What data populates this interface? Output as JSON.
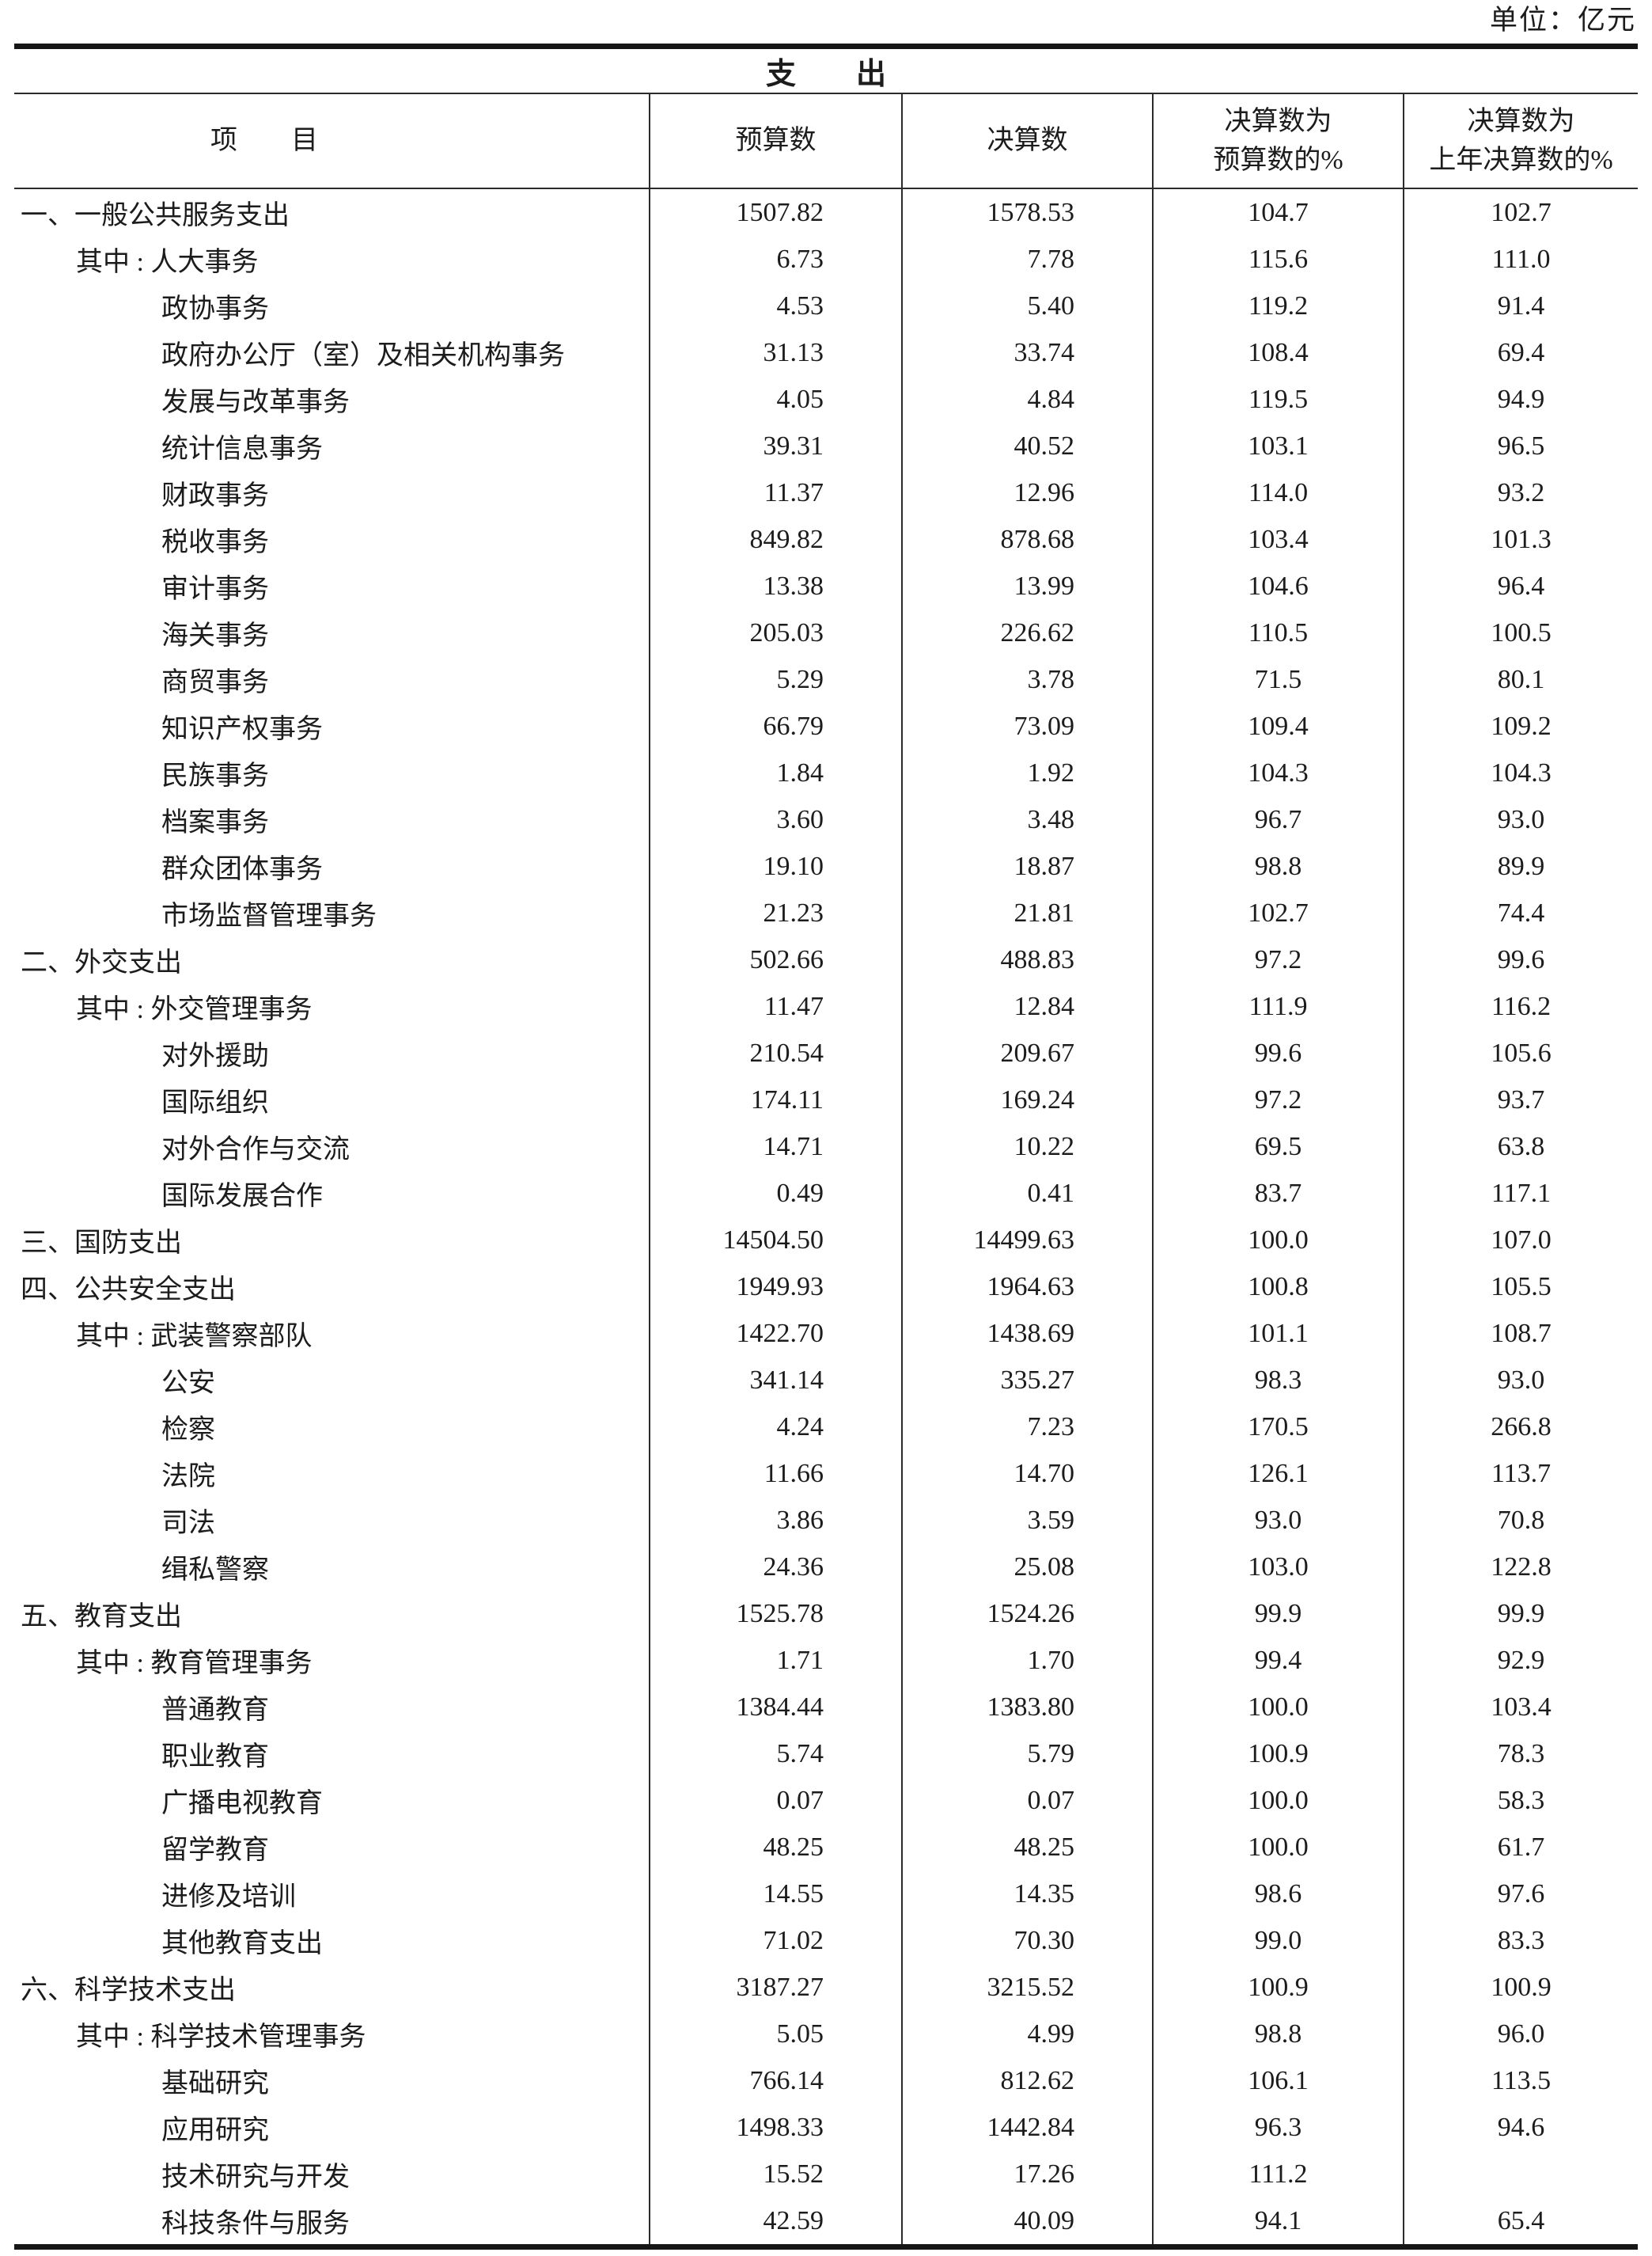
{
  "page": {
    "unit_label": "单位：亿元"
  },
  "table": {
    "title": "支　　出",
    "headers": {
      "item": "项　　目",
      "budget": "预算数",
      "final": "决算数",
      "pct_of_budget": "决算数为\n预算数的%",
      "pct_of_prev": "决算数为\n上年决算数的%"
    },
    "rows": [
      {
        "label": "一、一般公共服务支出",
        "indent": 0,
        "values": [
          "1507.82",
          "1578.53",
          "104.7",
          "102.7"
        ]
      },
      {
        "label": "其中 : 人大事务",
        "indent": 1,
        "values": [
          "6.73",
          "7.78",
          "115.6",
          "111.0"
        ]
      },
      {
        "label": "政协事务",
        "indent": 2,
        "values": [
          "4.53",
          "5.40",
          "119.2",
          "91.4"
        ]
      },
      {
        "label": "政府办公厅（室）及相关机构事务",
        "indent": 2,
        "values": [
          "31.13",
          "33.74",
          "108.4",
          "69.4"
        ]
      },
      {
        "label": "发展与改革事务",
        "indent": 2,
        "values": [
          "4.05",
          "4.84",
          "119.5",
          "94.9"
        ]
      },
      {
        "label": "统计信息事务",
        "indent": 2,
        "values": [
          "39.31",
          "40.52",
          "103.1",
          "96.5"
        ]
      },
      {
        "label": "财政事务",
        "indent": 2,
        "values": [
          "11.37",
          "12.96",
          "114.0",
          "93.2"
        ]
      },
      {
        "label": "税收事务",
        "indent": 2,
        "values": [
          "849.82",
          "878.68",
          "103.4",
          "101.3"
        ]
      },
      {
        "label": "审计事务",
        "indent": 2,
        "values": [
          "13.38",
          "13.99",
          "104.6",
          "96.4"
        ]
      },
      {
        "label": "海关事务",
        "indent": 2,
        "values": [
          "205.03",
          "226.62",
          "110.5",
          "100.5"
        ]
      },
      {
        "label": "商贸事务",
        "indent": 2,
        "values": [
          "5.29",
          "3.78",
          "71.5",
          "80.1"
        ]
      },
      {
        "label": "知识产权事务",
        "indent": 2,
        "values": [
          "66.79",
          "73.09",
          "109.4",
          "109.2"
        ]
      },
      {
        "label": "民族事务",
        "indent": 2,
        "values": [
          "1.84",
          "1.92",
          "104.3",
          "104.3"
        ]
      },
      {
        "label": "档案事务",
        "indent": 2,
        "values": [
          "3.60",
          "3.48",
          "96.7",
          "93.0"
        ]
      },
      {
        "label": "群众团体事务",
        "indent": 2,
        "values": [
          "19.10",
          "18.87",
          "98.8",
          "89.9"
        ]
      },
      {
        "label": "市场监督管理事务",
        "indent": 2,
        "values": [
          "21.23",
          "21.81",
          "102.7",
          "74.4"
        ]
      },
      {
        "label": "二、外交支出",
        "indent": 0,
        "values": [
          "502.66",
          "488.83",
          "97.2",
          "99.6"
        ]
      },
      {
        "label": "其中 : 外交管理事务",
        "indent": 1,
        "values": [
          "11.47",
          "12.84",
          "111.9",
          "116.2"
        ]
      },
      {
        "label": "对外援助",
        "indent": 2,
        "values": [
          "210.54",
          "209.67",
          "99.6",
          "105.6"
        ]
      },
      {
        "label": "国际组织",
        "indent": 2,
        "values": [
          "174.11",
          "169.24",
          "97.2",
          "93.7"
        ]
      },
      {
        "label": "对外合作与交流",
        "indent": 2,
        "values": [
          "14.71",
          "10.22",
          "69.5",
          "63.8"
        ]
      },
      {
        "label": "国际发展合作",
        "indent": 2,
        "values": [
          "0.49",
          "0.41",
          "83.7",
          "117.1"
        ]
      },
      {
        "label": "三、国防支出",
        "indent": 0,
        "values": [
          "14504.50",
          "14499.63",
          "100.0",
          "107.0"
        ]
      },
      {
        "label": "四、公共安全支出",
        "indent": 0,
        "values": [
          "1949.93",
          "1964.63",
          "100.8",
          "105.5"
        ]
      },
      {
        "label": "其中 : 武装警察部队",
        "indent": 1,
        "values": [
          "1422.70",
          "1438.69",
          "101.1",
          "108.7"
        ]
      },
      {
        "label": "公安",
        "indent": 2,
        "values": [
          "341.14",
          "335.27",
          "98.3",
          "93.0"
        ]
      },
      {
        "label": "检察",
        "indent": 2,
        "values": [
          "4.24",
          "7.23",
          "170.5",
          "266.8"
        ]
      },
      {
        "label": "法院",
        "indent": 2,
        "values": [
          "11.66",
          "14.70",
          "126.1",
          "113.7"
        ]
      },
      {
        "label": "司法",
        "indent": 2,
        "values": [
          "3.86",
          "3.59",
          "93.0",
          "70.8"
        ]
      },
      {
        "label": "缉私警察",
        "indent": 2,
        "values": [
          "24.36",
          "25.08",
          "103.0",
          "122.8"
        ]
      },
      {
        "label": "五、教育支出",
        "indent": 0,
        "values": [
          "1525.78",
          "1524.26",
          "99.9",
          "99.9"
        ]
      },
      {
        "label": "其中 : 教育管理事务",
        "indent": 1,
        "values": [
          "1.71",
          "1.70",
          "99.4",
          "92.9"
        ]
      },
      {
        "label": "普通教育",
        "indent": 2,
        "values": [
          "1384.44",
          "1383.80",
          "100.0",
          "103.4"
        ]
      },
      {
        "label": "职业教育",
        "indent": 2,
        "values": [
          "5.74",
          "5.79",
          "100.9",
          "78.3"
        ]
      },
      {
        "label": "广播电视教育",
        "indent": 2,
        "values": [
          "0.07",
          "0.07",
          "100.0",
          "58.3"
        ]
      },
      {
        "label": "留学教育",
        "indent": 2,
        "values": [
          "48.25",
          "48.25",
          "100.0",
          "61.7"
        ]
      },
      {
        "label": "进修及培训",
        "indent": 2,
        "values": [
          "14.55",
          "14.35",
          "98.6",
          "97.6"
        ]
      },
      {
        "label": "其他教育支出",
        "indent": 2,
        "values": [
          "71.02",
          "70.30",
          "99.0",
          "83.3"
        ]
      },
      {
        "label": "六、科学技术支出",
        "indent": 0,
        "values": [
          "3187.27",
          "3215.52",
          "100.9",
          "100.9"
        ]
      },
      {
        "label": "其中 : 科学技术管理事务",
        "indent": 1,
        "values": [
          "5.05",
          "4.99",
          "98.8",
          "96.0"
        ]
      },
      {
        "label": "基础研究",
        "indent": 2,
        "values": [
          "766.14",
          "812.62",
          "106.1",
          "113.5"
        ]
      },
      {
        "label": "应用研究",
        "indent": 2,
        "values": [
          "1498.33",
          "1442.84",
          "96.3",
          "94.6"
        ]
      },
      {
        "label": "技术研究与开发",
        "indent": 2,
        "values": [
          "15.52",
          "17.26",
          "111.2",
          ""
        ]
      },
      {
        "label": "科技条件与服务",
        "indent": 2,
        "values": [
          "42.59",
          "40.09",
          "94.1",
          "65.4"
        ]
      }
    ]
  }
}
